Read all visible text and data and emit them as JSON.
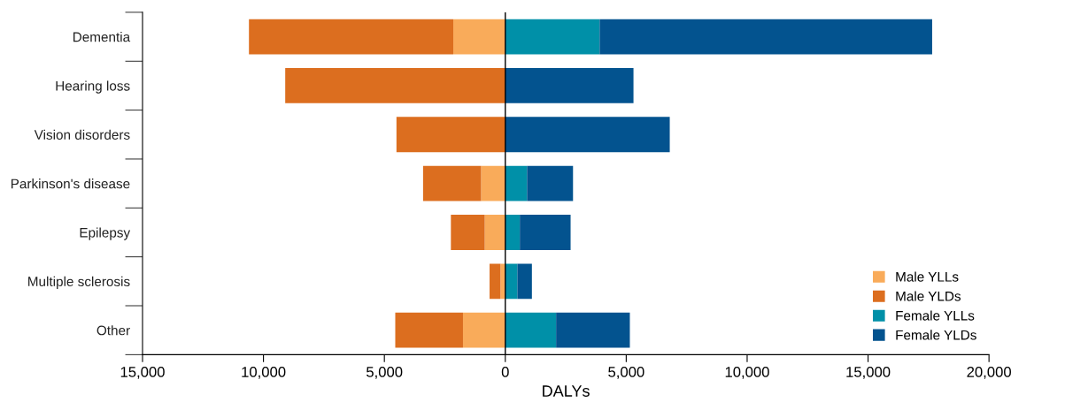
{
  "chart_data": {
    "type": "bar",
    "orientation": "horizontal",
    "stacked": true,
    "xlabel": "DALYs",
    "categories": [
      "Dementia",
      "Hearing loss",
      "Vision disorders",
      "Parkinson's disease",
      "Epilepsy",
      "Multiple sclerosis",
      "Other"
    ],
    "series": [
      {
        "name": "Male YLLs",
        "color": "#f9ab5a",
        "values": [
          -2150,
          0,
          0,
          -1000,
          -850,
          -200,
          -1750
        ]
      },
      {
        "name": "Male YLDs",
        "color": "#dc6e1f",
        "values": [
          -8450,
          -9100,
          -4500,
          -2400,
          -1400,
          -450,
          -2800
        ]
      },
      {
        "name": "Female YLLs",
        "color": "#0090a8",
        "values": [
          3900,
          0,
          0,
          900,
          600,
          500,
          2100
        ]
      },
      {
        "name": "Female YLDs",
        "color": "#03538f",
        "values": [
          13750,
          5300,
          6800,
          1900,
          2100,
          600,
          3050
        ]
      }
    ],
    "xlim": [
      -15000,
      20000
    ],
    "xticks": [
      {
        "value": -15000,
        "label": "15,000"
      },
      {
        "value": -10000,
        "label": "10,000"
      },
      {
        "value": -5000,
        "label": "5,000"
      },
      {
        "value": 0,
        "label": "0"
      },
      {
        "value": 5000,
        "label": "5,000"
      },
      {
        "value": 10000,
        "label": "10,000"
      },
      {
        "value": 15000,
        "label": "15,000"
      },
      {
        "value": 20000,
        "label": "20,000"
      }
    ],
    "ref_lines": [
      {
        "axis": "x",
        "value": 0,
        "color": "#000000"
      }
    ],
    "grid": false,
    "legend": "bottom right"
  }
}
